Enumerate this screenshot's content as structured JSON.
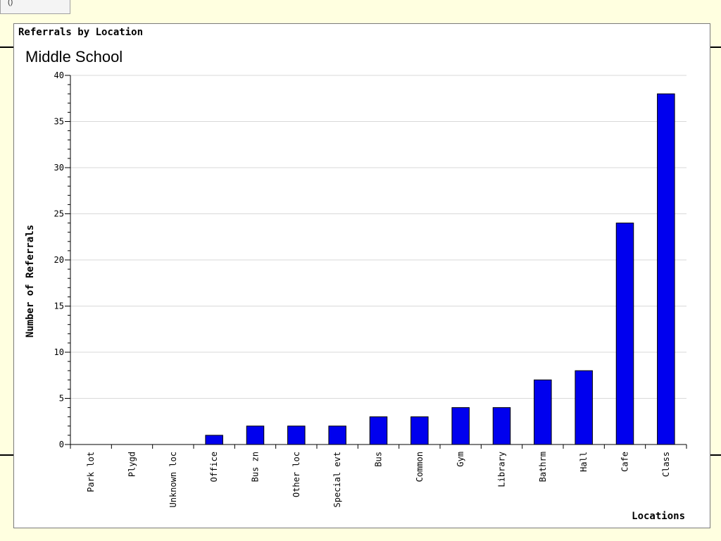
{
  "corner_widget": {
    "label": "()"
  },
  "chart_panel": {
    "title": "Referrals by Location",
    "subtitle": "Middle School"
  },
  "chart_data": {
    "type": "bar",
    "title": "Referrals by Location",
    "subtitle": "Middle School",
    "xlabel": "Locations",
    "ylabel": "Number of Referrals",
    "categories": [
      "Park lot",
      "Plygd",
      "Unknown loc",
      "Office",
      "Bus zn",
      "Other loc",
      "Special evt",
      "Bus",
      "Common",
      "Gym",
      "Library",
      "Bathrm",
      "Hall",
      "Cafe",
      "Class"
    ],
    "values": [
      0,
      0,
      0,
      1,
      2,
      2,
      2,
      3,
      3,
      4,
      4,
      7,
      8,
      24,
      38
    ],
    "ylim": [
      0,
      40
    ],
    "yticks": [
      0,
      5,
      10,
      15,
      20,
      25,
      30,
      35,
      40
    ],
    "grid": true,
    "legend": "none",
    "bar_color": "#0000ee",
    "grid_color": "#d9d9d9"
  }
}
